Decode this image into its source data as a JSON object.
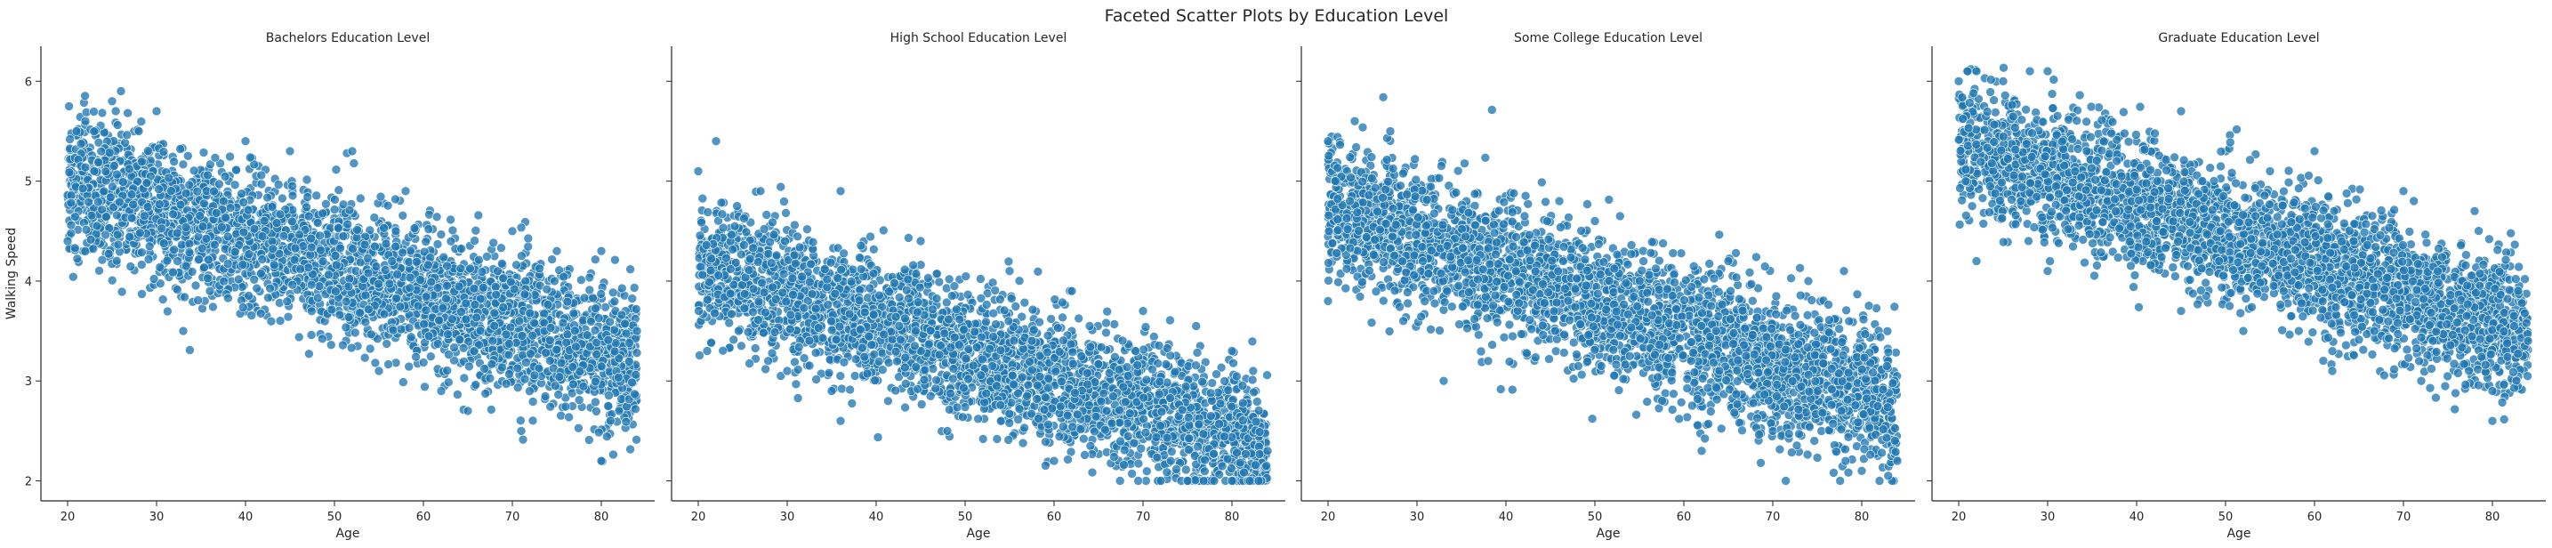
{
  "figure": {
    "title": "Faceted Scatter Plots by Education Level"
  },
  "chart_data": [
    {
      "type": "scatter",
      "title": "Bachelors Education Level",
      "xlabel": "Age",
      "ylabel": "Walking Speed",
      "xlim": [
        17,
        86
      ],
      "ylim": [
        1.8,
        6.35
      ],
      "xticks": [
        "20",
        "30",
        "40",
        "50",
        "60",
        "70",
        "80"
      ],
      "yticks": [
        "2",
        "3",
        "4",
        "5",
        "6"
      ],
      "grid": false,
      "color": "#1f77b4",
      "trend": {
        "x0": 20,
        "y0": 5.0,
        "x1": 83,
        "y1": 3.2,
        "spread": 0.35
      },
      "points": [
        [
          20,
          4.4
        ],
        [
          21,
          5.5
        ],
        [
          22,
          5.6
        ],
        [
          23,
          5.1
        ],
        [
          25,
          5.8
        ],
        [
          26,
          5.9
        ],
        [
          28,
          5.5
        ],
        [
          30,
          5.7
        ],
        [
          33,
          3.5
        ],
        [
          36,
          3.9
        ],
        [
          40,
          5.4
        ],
        [
          45,
          5.3
        ],
        [
          52,
          5.3
        ],
        [
          55,
          3.1
        ],
        [
          58,
          4.9
        ],
        [
          62,
          2.9
        ],
        [
          65,
          2.7
        ],
        [
          70,
          4.5
        ],
        [
          71,
          2.5
        ],
        [
          75,
          4.3
        ],
        [
          80,
          4.3
        ],
        [
          80,
          2.2
        ],
        [
          82,
          2.7
        ],
        [
          84,
          3.5
        ]
      ]
    },
    {
      "type": "scatter",
      "title": "High School Education Level",
      "xlabel": "Age",
      "ylabel": "",
      "xlim": [
        17,
        86
      ],
      "ylim": [
        1.8,
        6.35
      ],
      "xticks": [
        "20",
        "30",
        "40",
        "50",
        "60",
        "70",
        "80"
      ],
      "yticks": [
        "2",
        "3",
        "4",
        "5",
        "6"
      ],
      "grid": false,
      "color": "#1f77b4",
      "trend": {
        "x0": 20,
        "y0": 4.15,
        "x1": 83,
        "y1": 2.35,
        "spread": 0.33
      },
      "points": [
        [
          20,
          5.1
        ],
        [
          22,
          5.4
        ],
        [
          21,
          3.3
        ],
        [
          27,
          4.9
        ],
        [
          30,
          3.1
        ],
        [
          35,
          2.9
        ],
        [
          36,
          2.6
        ],
        [
          36,
          4.9
        ],
        [
          45,
          4.4
        ],
        [
          48,
          2.5
        ],
        [
          55,
          4.1
        ],
        [
          60,
          2.2
        ],
        [
          62,
          3.9
        ],
        [
          70,
          3.7
        ],
        [
          72,
          2.0
        ],
        [
          75,
          2.0
        ],
        [
          78,
          2.0
        ],
        [
          80,
          2.0
        ],
        [
          80,
          3.3
        ],
        [
          82,
          2.0
        ],
        [
          83,
          2.0
        ],
        [
          84,
          2.3
        ]
      ]
    },
    {
      "type": "scatter",
      "title": "Some College Education Level",
      "xlabel": "Age",
      "ylabel": "",
      "xlim": [
        17,
        86
      ],
      "ylim": [
        1.8,
        6.35
      ],
      "xticks": [
        "20",
        "30",
        "40",
        "50",
        "60",
        "70",
        "80"
      ],
      "yticks": [
        "2",
        "3",
        "4",
        "5",
        "6"
      ],
      "grid": false,
      "color": "#1f77b4",
      "trend": {
        "x0": 20,
        "y0": 4.75,
        "x1": 83,
        "y1": 2.75,
        "spread": 0.35
      },
      "points": [
        [
          20,
          5.4
        ],
        [
          23,
          5.6
        ],
        [
          27,
          5.5
        ],
        [
          20,
          3.8
        ],
        [
          33,
          3.0
        ],
        [
          38,
          3.2
        ],
        [
          46,
          4.8
        ],
        [
          50,
          4.6
        ],
        [
          62,
          2.3
        ],
        [
          65,
          4.2
        ],
        [
          70,
          2.5
        ],
        [
          74,
          4.0
        ],
        [
          78,
          4.1
        ],
        [
          80,
          2.1
        ],
        [
          82,
          2.0
        ],
        [
          84,
          2.2
        ]
      ]
    },
    {
      "type": "scatter",
      "title": "Graduate Education Level",
      "xlabel": "Age",
      "ylabel": "",
      "xlim": [
        17,
        86
      ],
      "ylim": [
        1.8,
        6.35
      ],
      "xticks": [
        "20",
        "30",
        "40",
        "50",
        "60",
        "70",
        "80"
      ],
      "yticks": [
        "2",
        "3",
        "4",
        "5",
        "6"
      ],
      "grid": false,
      "color": "#1f77b4",
      "trend": {
        "x0": 20,
        "y0": 5.35,
        "x1": 83,
        "y1": 3.5,
        "spread": 0.33
      },
      "points": [
        [
          20,
          6.0
        ],
        [
          21,
          6.1
        ],
        [
          22,
          6.1
        ],
        [
          25,
          6.0
        ],
        [
          28,
          6.1
        ],
        [
          30,
          6.1
        ],
        [
          22,
          4.2
        ],
        [
          30,
          4.1
        ],
        [
          45,
          3.7
        ],
        [
          45,
          5.7
        ],
        [
          52,
          3.5
        ],
        [
          55,
          5.1
        ],
        [
          60,
          5.3
        ],
        [
          62,
          3.1
        ],
        [
          70,
          4.9
        ],
        [
          72,
          3.0
        ],
        [
          78,
          4.7
        ],
        [
          80,
          2.9
        ],
        [
          80,
          2.6
        ],
        [
          84,
          3.4
        ]
      ]
    }
  ]
}
